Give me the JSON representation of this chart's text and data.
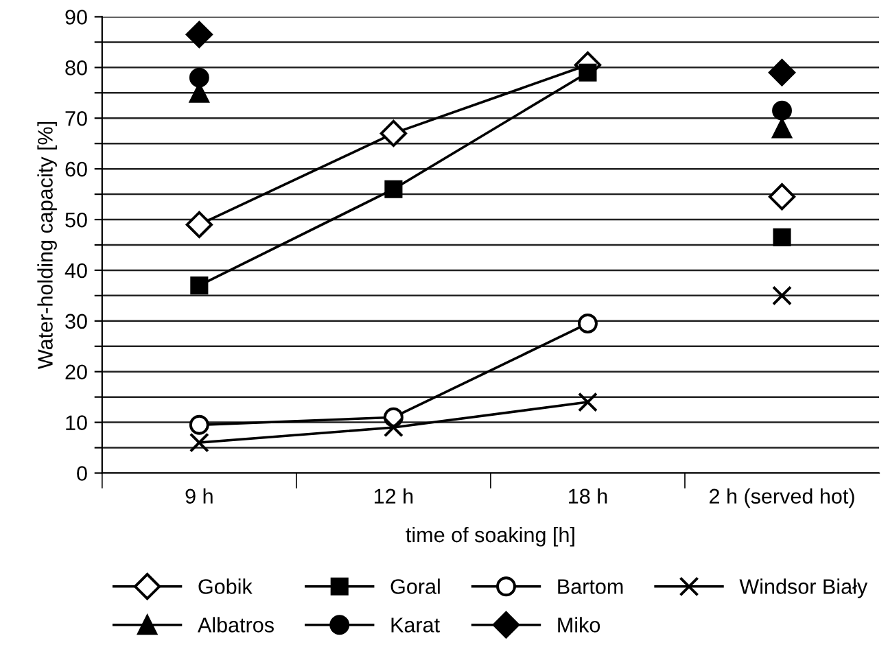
{
  "chart_data": {
    "type": "line",
    "xlabel": "time of soaking [h]",
    "ylabel": "Water-holding capacity [%]",
    "categories": [
      "9 h",
      "12 h",
      "18 h",
      "2 h (served hot)"
    ],
    "ylim": [
      0,
      90
    ],
    "yticks": [
      0,
      {
        "value": 5,
        "label": null
      },
      10,
      {
        "value": 15,
        "label": null
      },
      20,
      {
        "value": 25,
        "label": null
      },
      30,
      {
        "value": 35,
        "label": null
      },
      40,
      {
        "value": 45,
        "label": null
      },
      50,
      {
        "value": 55,
        "label": null
      },
      60,
      {
        "value": 65,
        "label": null
      },
      70,
      {
        "value": 75,
        "label": null
      },
      80,
      {
        "value": 85,
        "label": null
      },
      90
    ],
    "grid": "y",
    "legend": "bottom",
    "series": [
      {
        "name": "Gobik",
        "marker": "diamond",
        "color": "#ffffff",
        "values": [
          49,
          67,
          80.5,
          null
        ]
      },
      {
        "name": "Goral",
        "marker": "square",
        "color": "#000000",
        "values": [
          37,
          56,
          79,
          null
        ]
      },
      {
        "name": "Bartom",
        "marker": "circle",
        "color": "#ffffff",
        "values": [
          9.5,
          11,
          29.5,
          null
        ]
      },
      {
        "name": "Windsor Biały",
        "marker": "cross",
        "color": "#000000",
        "values": [
          6,
          9,
          14,
          null
        ]
      },
      {
        "name": "Albatros",
        "marker": "triangle",
        "color": "#000000",
        "values": [
          75,
          null,
          null,
          68
        ]
      },
      {
        "name": "Karat",
        "marker": "circle",
        "color": "#000000",
        "values": [
          78,
          null,
          null,
          71.5
        ]
      },
      {
        "name": "Miko",
        "marker": "diamond",
        "color": "#000000",
        "values": [
          86.5,
          null,
          null,
          79
        ]
      },
      {
        "marker": "diamond",
        "color": "#ffffff",
        "x": [
          "2 h (served hot)"
        ],
        "values": [
          54.5
        ]
      },
      {
        "marker": "square",
        "color": "#000000",
        "x": [
          "2 h (served hot)"
        ],
        "values": [
          46.5
        ]
      },
      {
        "marker": "cross",
        "color": "#000000",
        "x": [
          "2 h (served hot)"
        ],
        "values": [
          35
        ]
      }
    ]
  }
}
